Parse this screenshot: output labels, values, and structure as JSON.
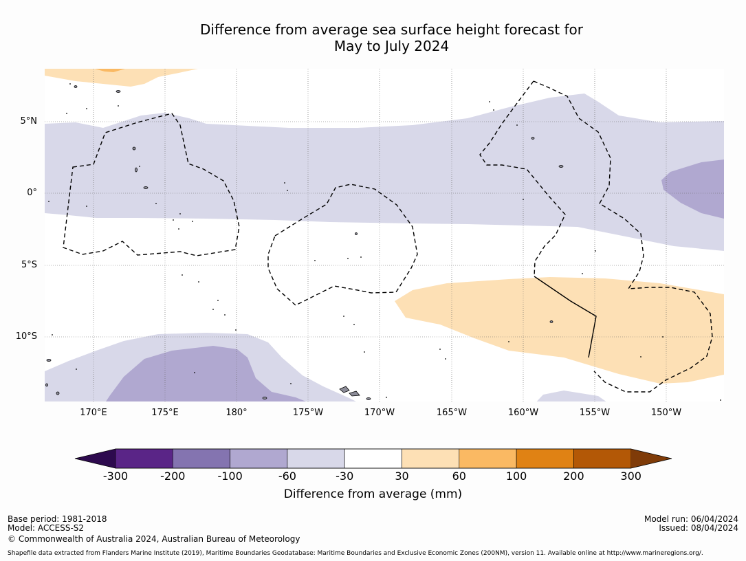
{
  "title": {
    "line1": "Difference from average sea surface height forecast for",
    "line2": "May to July 2024"
  },
  "map": {
    "lat_ticks": [
      "5°N",
      "0°",
      "5°S",
      "10°S"
    ],
    "lon_ticks": [
      "170°E",
      "175°E",
      "180°",
      "175°W",
      "170°W",
      "165°W",
      "160°W",
      "155°W",
      "150°W"
    ],
    "colors": {
      "light_purple": "#d8d8e9",
      "mid_purple": "#b0a8d0",
      "light_orange": "#fde0b5",
      "mid_orange": "#fab963",
      "land": "#8c8c98"
    }
  },
  "colorbar": {
    "title": "Difference from average (mm)",
    "labels": [
      "-300",
      "-200",
      "-100",
      "-60",
      "-30",
      "30",
      "60",
      "100",
      "200",
      "300"
    ],
    "colors": [
      "#2d0a4e",
      "#5a2587",
      "#8474b0",
      "#b0a8d0",
      "#d8d8e9",
      "#ffffff",
      "#fde0b5",
      "#fab963",
      "#e08214",
      "#b35806",
      "#7f3b08"
    ]
  },
  "footer": {
    "base_period": "Base period: 1981-2018",
    "model": "Model: ACCESS-S2",
    "copyright": "© Commonwealth of Australia 2024, Australian Bureau of Meteorology",
    "model_run": "Model run: 06/04/2024",
    "issued": "Issued: 08/04/2024",
    "shapefile": "Shapefile data extracted from Flanders Marine Institute (2019), Maritime Boundaries Geodatabase: Maritime Boundaries and Exclusive Economic Zones (200NM), version 11. Available online at http://www.marineregions.org/."
  }
}
